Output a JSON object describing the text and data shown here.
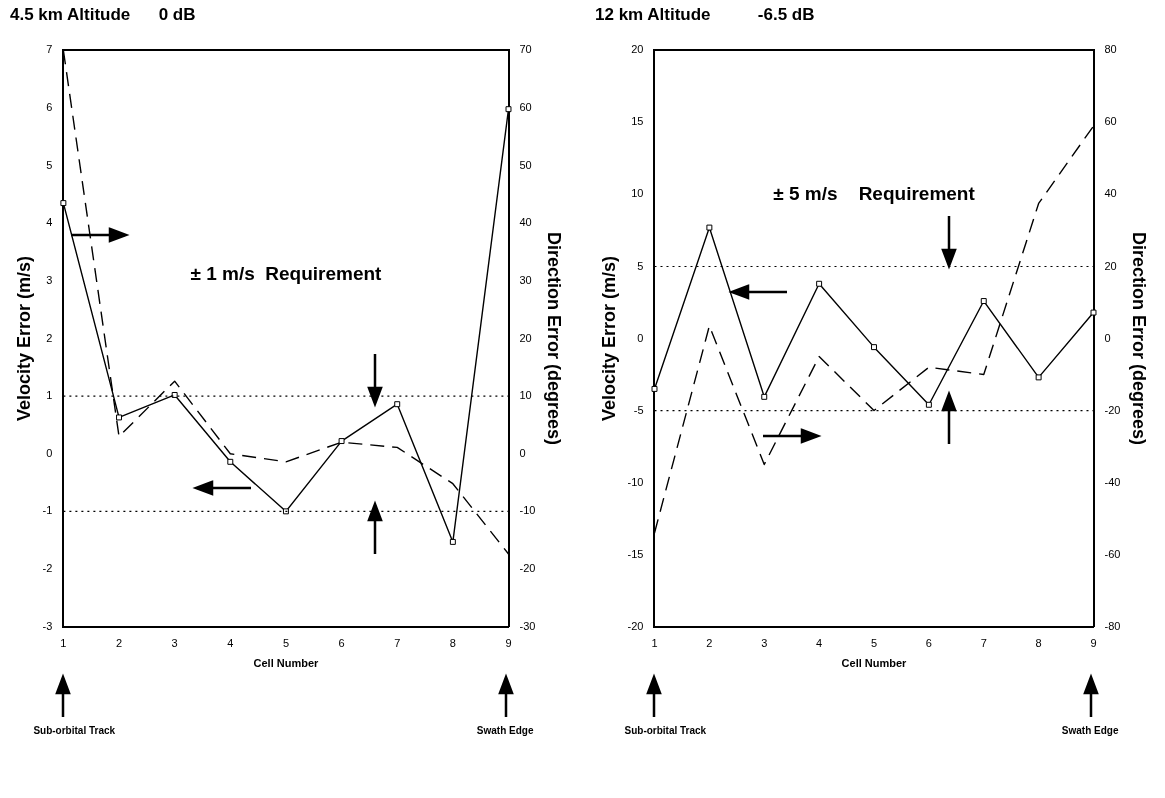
{
  "chart_data": [
    {
      "type": "line",
      "title": "4.5 km Altitude      0 dB",
      "xlabel": "Cell Number",
      "ylabel": "Velocity Error (m/s)",
      "y2label": "Direction Error (degrees)",
      "categories": [
        "1",
        "2",
        "3",
        "4",
        "5",
        "6",
        "7",
        "8",
        "9"
      ],
      "series": [
        {
          "color": "#000000",
          "marker": "square",
          "line_style": "solid",
          "values": [
            4.35,
            0.63,
            1.02,
            -0.14,
            -1.0,
            0.22,
            0.86,
            -1.53,
            5.98
          ]
        },
        {
          "color": "#000000",
          "marker": "none",
          "line_style": "dashed",
          "axis": "y2",
          "values": [
            70,
            3,
            12.6,
            0,
            -1.4,
            2,
            1.1,
            -5.2,
            -17.4
          ]
        }
      ],
      "ylim": [
        -3,
        7
      ],
      "yticks": [
        -3,
        -2,
        -1,
        0,
        1,
        2,
        3,
        4,
        5,
        6,
        7
      ],
      "y2lim": [
        -30,
        70
      ],
      "y2ticks": [
        -30,
        -20,
        -10,
        0,
        10,
        20,
        30,
        40,
        50,
        60,
        70
      ],
      "ref_lines": [
        {
          "axis": "y",
          "value": 1,
          "line_style": "dotted"
        },
        {
          "axis": "y",
          "value": -1,
          "line_style": "dotted"
        }
      ],
      "annotations": [
        "± 1 m/s  Requirement",
        "Sub-orbital Track",
        "Swath Edge"
      ],
      "grid": false,
      "legend": false
    },
    {
      "type": "line",
      "title": "12 km Altitude          -6.5 dB",
      "xlabel": "Cell Number",
      "ylabel": "Velocity Error (m/s)",
      "y2label": "Direction Error (degrees)",
      "categories": [
        "1",
        "2",
        "3",
        "4",
        "5",
        "6",
        "7",
        "8",
        "9"
      ],
      "series": [
        {
          "color": "#000000",
          "marker": "square",
          "line_style": "solid",
          "values": [
            -3.5,
            7.7,
            -4.05,
            3.8,
            -0.6,
            -4.6,
            2.6,
            -2.7,
            1.8
          ]
        },
        {
          "color": "#000000",
          "marker": "none",
          "line_style": "dashed",
          "axis": "y2",
          "values": [
            -54,
            3.5,
            -35,
            -5,
            -20,
            -8,
            -10,
            37.5,
            59
          ]
        }
      ],
      "ylim": [
        -20,
        20
      ],
      "yticks": [
        -20,
        -15,
        -10,
        -5,
        0,
        5,
        10,
        15,
        20
      ],
      "y2lim": [
        -80,
        80
      ],
      "y2ticks": [
        -80,
        -60,
        -40,
        -20,
        0,
        20,
        40,
        60,
        80
      ],
      "ref_lines": [
        {
          "axis": "y",
          "value": 5,
          "line_style": "dotted"
        },
        {
          "axis": "y",
          "value": -5,
          "line_style": "dotted"
        }
      ],
      "annotations": [
        "± 5 m/s    Requirement",
        "Sub-orbital Track",
        "Swath Edge"
      ],
      "grid": false,
      "legend": false
    }
  ]
}
